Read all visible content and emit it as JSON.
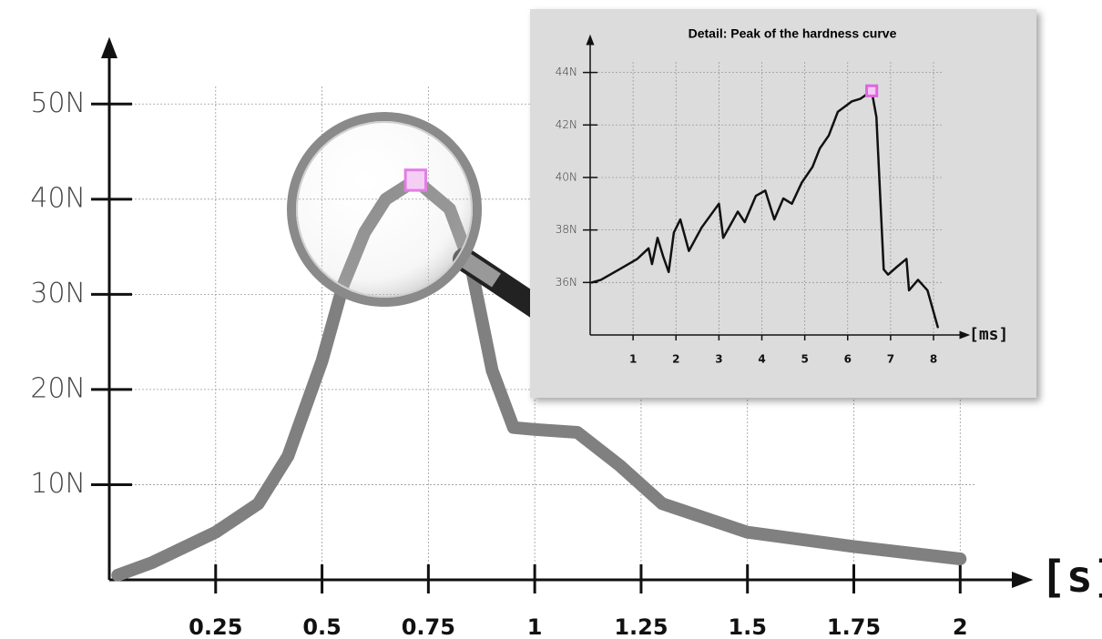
{
  "chart_data": [
    {
      "type": "line",
      "x_label": "[s]",
      "color": "#808080",
      "x": [
        0.02,
        0.1,
        0.25,
        0.35,
        0.42,
        0.5,
        0.55,
        0.6,
        0.65,
        0.72,
        0.8,
        0.85,
        0.9,
        0.95,
        1.0,
        1.1,
        1.2,
        1.3,
        1.5,
        1.75,
        2.0
      ],
      "values": [
        0.5,
        1.8,
        5,
        8,
        13,
        23,
        31,
        36.5,
        40,
        42,
        39,
        33,
        22,
        16,
        15.8,
        15.5,
        12,
        8,
        5,
        3.5,
        2.2
      ],
      "highlight": {
        "x": 0.72,
        "y": 42,
        "color": "#e066e0"
      },
      "xlim": [
        0,
        2.1
      ],
      "ylim": [
        0,
        55
      ],
      "xticks": [
        0.25,
        0.5,
        0.75,
        1,
        1.25,
        1.5,
        1.75,
        2
      ],
      "yticks": [
        {
          "value": 10,
          "label": "10N"
        },
        {
          "value": 20,
          "label": "20N"
        },
        {
          "value": 30,
          "label": "30N"
        },
        {
          "value": 40,
          "label": "40N"
        },
        {
          "value": 50,
          "label": "50N"
        }
      ],
      "grid": true
    },
    {
      "type": "line",
      "title": "Detail: Peak of the hardness curve",
      "x_label": "[ms]",
      "color": "#111111",
      "x": [
        0.04,
        0.25,
        0.68,
        1.1,
        1.36,
        1.44,
        1.57,
        1.7,
        1.83,
        1.95,
        2.1,
        2.3,
        2.6,
        3.0,
        3.1,
        3.44,
        3.6,
        3.86,
        4.08,
        4.29,
        4.5,
        4.7,
        4.93,
        5.18,
        5.35,
        5.56,
        5.77,
        6.1,
        6.3,
        6.56,
        6.67,
        6.84,
        6.94,
        7.15,
        7.37,
        7.43,
        7.64,
        7.86,
        8.1
      ],
      "values": [
        36.0,
        36.1,
        36.5,
        36.9,
        37.3,
        36.7,
        37.7,
        37.0,
        36.4,
        37.9,
        38.4,
        37.2,
        38.1,
        39.0,
        37.7,
        38.7,
        38.3,
        39.3,
        39.5,
        38.4,
        39.2,
        39.0,
        39.8,
        40.4,
        41.1,
        41.6,
        42.5,
        42.9,
        43.0,
        43.3,
        42.3,
        36.5,
        36.3,
        36.6,
        36.9,
        35.7,
        36.1,
        35.7,
        34.3
      ],
      "highlight": {
        "x": 6.56,
        "y": 43.3,
        "color": "#e066e0"
      },
      "xlim": [
        0,
        8.7
      ],
      "ylim": [
        34,
        45.2
      ],
      "xticks": [
        1,
        2,
        3,
        4,
        5,
        6,
        7,
        8
      ],
      "yticks": [
        {
          "value": 36,
          "label": "36N"
        },
        {
          "value": 38,
          "label": "38N"
        },
        {
          "value": 40,
          "label": "40N"
        },
        {
          "value": 42,
          "label": "42N"
        },
        {
          "value": 44,
          "label": "44N"
        }
      ],
      "grid": true
    }
  ]
}
